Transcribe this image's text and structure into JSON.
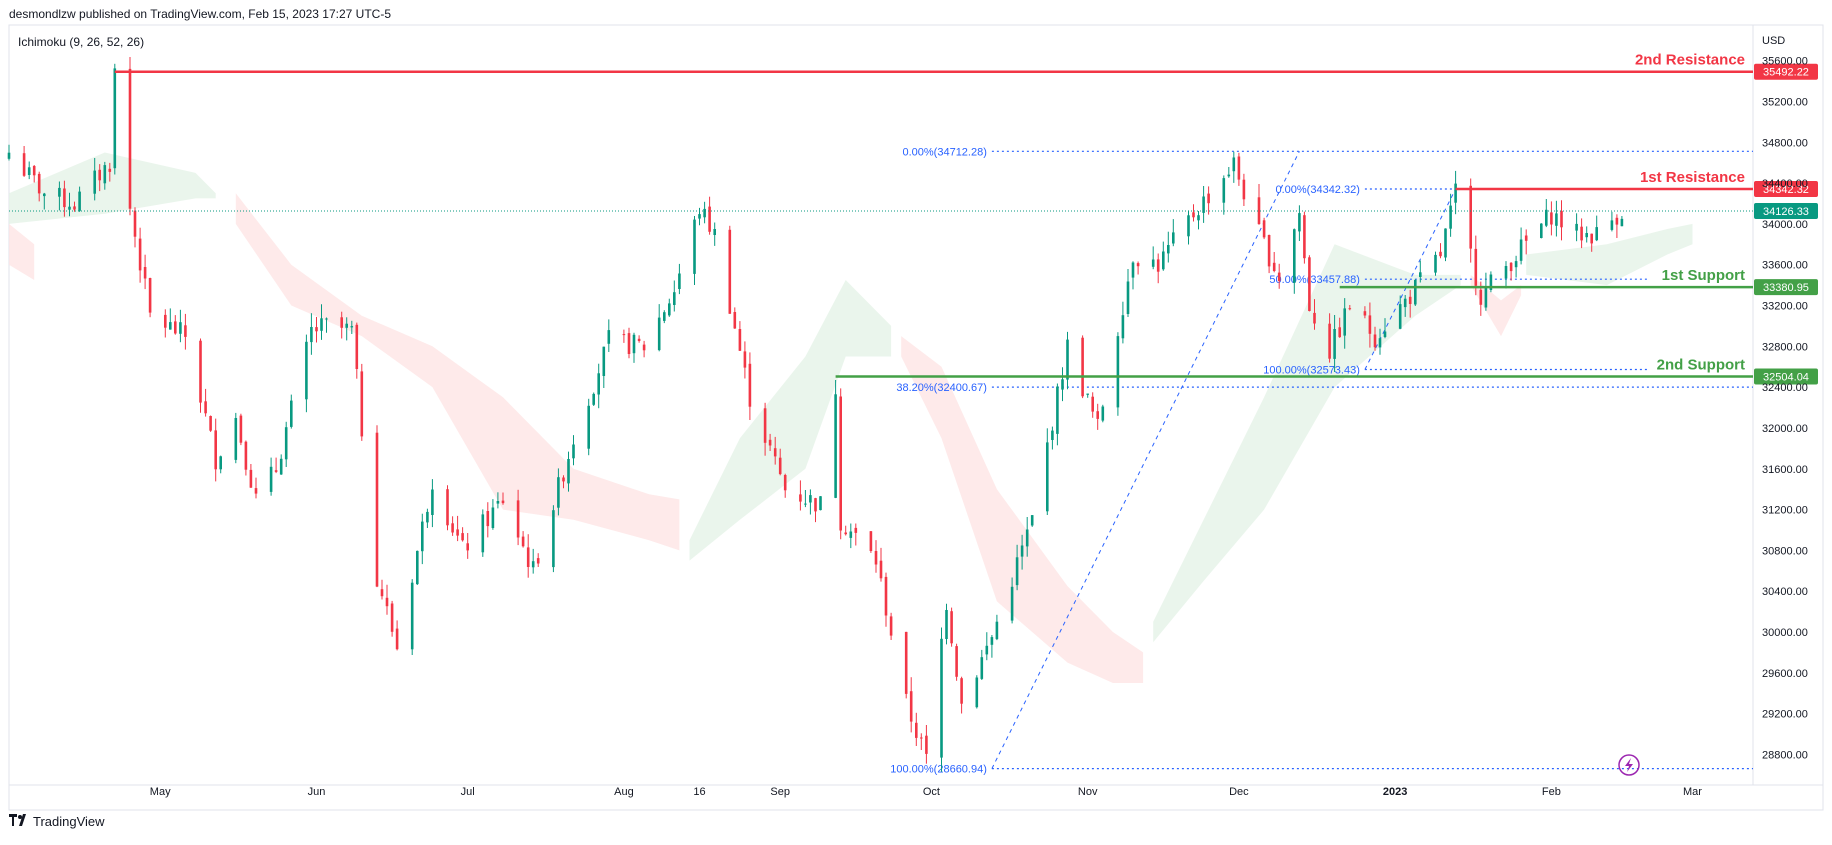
{
  "header": {
    "published": "desmondlzw published on TradingView.com, Feb 15, 2023 17:27 UTC-5",
    "indicator": "Ichimoku (9, 26, 52, 26)",
    "currency": "USD",
    "brand": "TradingView"
  },
  "colors": {
    "up": "#089981",
    "down": "#f23645",
    "resistance": "#f23645",
    "support": "#43a047",
    "fib": "#2962ff",
    "cloud_bull": "#e3f2e6",
    "cloud_bear": "#fde3e3"
  },
  "chart_data": {
    "type": "candlestick",
    "ylim": [
      28500,
      35950
    ],
    "y_ticks": [
      28800,
      29200,
      29600,
      30000,
      30400,
      30800,
      31200,
      31600,
      32000,
      32400,
      32800,
      33200,
      33600,
      34000,
      34400,
      34800,
      35200,
      35600
    ],
    "y_tick_labels": [
      "28800.00",
      "29200.00",
      "29600.00",
      "30000.00",
      "30400.00",
      "30800.00",
      "31200.00",
      "31600.00",
      "32000.00",
      "32400.00",
      "32800.00",
      "33200.00",
      "33600.00",
      "34000.00",
      "34400.00",
      "34800.00",
      "35200.00",
      "35600.00"
    ],
    "x_labels": [
      {
        "date": "2022-05-01",
        "label": "May"
      },
      {
        "date": "2022-06-01",
        "label": "Jun"
      },
      {
        "date": "2022-07-01",
        "label": "Jul"
      },
      {
        "date": "2022-08-01",
        "label": "Aug"
      },
      {
        "date": "2022-08-16",
        "label": "16"
      },
      {
        "date": "2022-09-01",
        "label": "Sep"
      },
      {
        "date": "2022-10-01",
        "label": "Oct"
      },
      {
        "date": "2022-11-01",
        "label": "Nov"
      },
      {
        "date": "2022-12-01",
        "label": "Dec"
      },
      {
        "date": "2023-01-01",
        "label": "2023",
        "bold": true
      },
      {
        "date": "2023-02-01",
        "label": "Feb"
      },
      {
        "date": "2023-03-01",
        "label": "Mar"
      }
    ],
    "x_range": [
      "2022-04-01",
      "2023-03-13"
    ],
    "last_date": "2023-02-15",
    "price_path": [
      [
        "2022-04-01",
        34700
      ],
      [
        "2022-04-08",
        34300
      ],
      [
        "2022-04-14",
        34200
      ],
      [
        "2022-04-21",
        34600
      ],
      [
        "2022-04-22",
        35492
      ],
      [
        "2022-04-25",
        34150
      ],
      [
        "2022-04-29",
        33100
      ],
      [
        "2022-05-06",
        32900
      ],
      [
        "2022-05-12",
        31700
      ],
      [
        "2022-05-16",
        32100
      ],
      [
        "2022-05-20",
        31300
      ],
      [
        "2022-05-24",
        31600
      ],
      [
        "2022-05-31",
        32950
      ],
      [
        "2022-06-03",
        33000
      ],
      [
        "2022-06-08",
        32950
      ],
      [
        "2022-06-13",
        30550
      ],
      [
        "2022-06-17",
        29850
      ],
      [
        "2022-06-24",
        31500
      ],
      [
        "2022-06-30",
        30800
      ],
      [
        "2022-07-08",
        31300
      ],
      [
        "2022-07-14",
        30600
      ],
      [
        "2022-07-22",
        31900
      ],
      [
        "2022-07-29",
        32850
      ],
      [
        "2022-08-05",
        32800
      ],
      [
        "2022-08-11",
        33350
      ],
      [
        "2022-08-16",
        34150
      ],
      [
        "2022-08-19",
        33900
      ],
      [
        "2022-08-26",
        32300
      ],
      [
        "2022-09-02",
        31400
      ],
      [
        "2022-09-09",
        31250
      ],
      [
        "2022-09-12",
        32400
      ],
      [
        "2022-09-13",
        31100
      ],
      [
        "2022-09-20",
        30700
      ],
      [
        "2022-09-26",
        29300
      ],
      [
        "2022-09-30",
        28750
      ],
      [
        "2022-10-04",
        30300
      ],
      [
        "2022-10-07",
        29300
      ],
      [
        "2022-10-13",
        29950
      ],
      [
        "2022-10-21",
        31100
      ],
      [
        "2022-10-28",
        32800
      ],
      [
        "2022-11-03",
        32000
      ],
      [
        "2022-11-10",
        33700
      ],
      [
        "2022-11-15",
        33600
      ],
      [
        "2022-11-22",
        34100
      ],
      [
        "2022-11-30",
        34590
      ],
      [
        "2022-12-05",
        33900
      ],
      [
        "2022-12-09",
        33480
      ],
      [
        "2022-12-13",
        34108
      ],
      [
        "2022-12-15",
        33200
      ],
      [
        "2022-12-19",
        32750
      ],
      [
        "2022-12-23",
        33200
      ],
      [
        "2022-12-28",
        32900
      ],
      [
        "2023-01-04",
        33300
      ],
      [
        "2023-01-10",
        33700
      ],
      [
        "2023-01-13",
        34300
      ],
      [
        "2023-01-18",
        33300
      ],
      [
        "2023-01-25",
        33700
      ],
      [
        "2023-02-01",
        34100
      ],
      [
        "2023-02-06",
        33900
      ],
      [
        "2023-02-10",
        33900
      ],
      [
        "2023-02-14",
        34090
      ],
      [
        "2023-02-15",
        34126
      ]
    ],
    "cloud_segments": [
      {
        "kind": "bull",
        "points": [
          [
            "2022-04-01",
            34300,
            34000
          ],
          [
            "2022-04-20",
            34700,
            34100
          ],
          [
            "2022-05-08",
            34500,
            34250
          ],
          [
            "2022-05-12",
            34300,
            34250
          ]
        ]
      },
      {
        "kind": "bear",
        "points": [
          [
            "2022-04-01",
            34000,
            33600
          ],
          [
            "2022-04-06",
            33800,
            33450
          ]
        ]
      },
      {
        "kind": "bear",
        "points": [
          [
            "2022-05-16",
            34300,
            34000
          ],
          [
            "2022-05-27",
            33600,
            33200
          ],
          [
            "2022-06-10",
            33100,
            32900
          ],
          [
            "2022-06-24",
            32800,
            32400
          ],
          [
            "2022-07-08",
            32300,
            31200
          ],
          [
            "2022-07-22",
            31600,
            31100
          ],
          [
            "2022-08-06",
            31350,
            30900
          ],
          [
            "2022-08-12",
            31300,
            30800
          ]
        ]
      },
      {
        "kind": "bull",
        "points": [
          [
            "2022-08-14",
            30900,
            30700
          ],
          [
            "2022-08-24",
            31900,
            31100
          ],
          [
            "2022-09-06",
            32700,
            31600
          ],
          [
            "2022-09-14",
            33450,
            32700
          ],
          [
            "2022-09-23",
            33000,
            32700
          ]
        ]
      },
      {
        "kind": "bear",
        "points": [
          [
            "2022-09-25",
            32900,
            32700
          ],
          [
            "2022-10-03",
            32600,
            31900
          ],
          [
            "2022-10-14",
            31400,
            30300
          ],
          [
            "2022-10-28",
            30450,
            29700
          ],
          [
            "2022-11-06",
            30000,
            29500
          ],
          [
            "2022-11-12",
            29800,
            29500
          ]
        ]
      },
      {
        "kind": "bull",
        "points": [
          [
            "2022-11-14",
            30100,
            29900
          ],
          [
            "2022-11-24",
            31100,
            30500
          ],
          [
            "2022-12-06",
            32300,
            31200
          ],
          [
            "2022-12-20",
            33800,
            32400
          ],
          [
            "2023-01-05",
            33500,
            33100
          ],
          [
            "2023-01-14",
            33500,
            33400
          ]
        ]
      },
      {
        "kind": "bear",
        "points": [
          [
            "2023-01-16",
            33500,
            33400
          ],
          [
            "2023-01-22",
            33250,
            32900
          ],
          [
            "2023-01-26",
            33400,
            33300
          ]
        ]
      },
      {
        "kind": "bull",
        "points": [
          [
            "2023-01-27",
            33700,
            33500
          ],
          [
            "2023-02-12",
            33800,
            33400
          ],
          [
            "2023-02-24",
            33950,
            33700
          ],
          [
            "2023-03-01",
            34000,
            33800
          ]
        ]
      }
    ],
    "levels": [
      {
        "name": "2nd Resistance",
        "value": 35492.22,
        "label": "35492.22",
        "role": "resistance",
        "start": "2022-04-22"
      },
      {
        "name": "1st Resistance",
        "value": 34342.32,
        "label": "34342.32",
        "role": "resistance",
        "start": "2023-01-13"
      },
      {
        "name": "1st Support",
        "value": 33380.95,
        "label": "33380.95",
        "role": "support",
        "start": "2022-12-21"
      },
      {
        "name": "2nd Support",
        "value": 32504.04,
        "label": "32504.04",
        "role": "support",
        "start": "2022-09-12"
      }
    ],
    "last_price": {
      "value": 34126.33,
      "label": "34126.33"
    },
    "fib_levels": [
      {
        "label": "0.00%(34712.28)",
        "value": 34712.28,
        "start": "2022-10-13",
        "end": "2023-03-13"
      },
      {
        "label": "38.20%(32400.67)",
        "value": 32400.67,
        "start": "2022-10-13",
        "end": "2023-03-13"
      },
      {
        "label": "100.00%(28660.94)",
        "value": 28660.94,
        "start": "2022-10-13",
        "end": "2023-03-13"
      },
      {
        "label": "0.00%(34342.32)",
        "value": 34342.32,
        "start": "2022-12-26",
        "end": "2023-02-20"
      },
      {
        "label": "50.00%(33457.88)",
        "value": 33457.88,
        "start": "2022-12-26",
        "end": "2023-02-20"
      },
      {
        "label": "100.00%(32573.43)",
        "value": 32573.43,
        "start": "2022-12-26",
        "end": "2023-02-20"
      }
    ],
    "fib_trendlines": [
      {
        "from": [
          "2022-10-13",
          28660.94
        ],
        "to": [
          "2022-12-13",
          34712.28
        ]
      },
      {
        "from": [
          "2022-12-26",
          32573.43
        ],
        "to": [
          "2023-01-13",
          34342.32
        ]
      }
    ]
  }
}
